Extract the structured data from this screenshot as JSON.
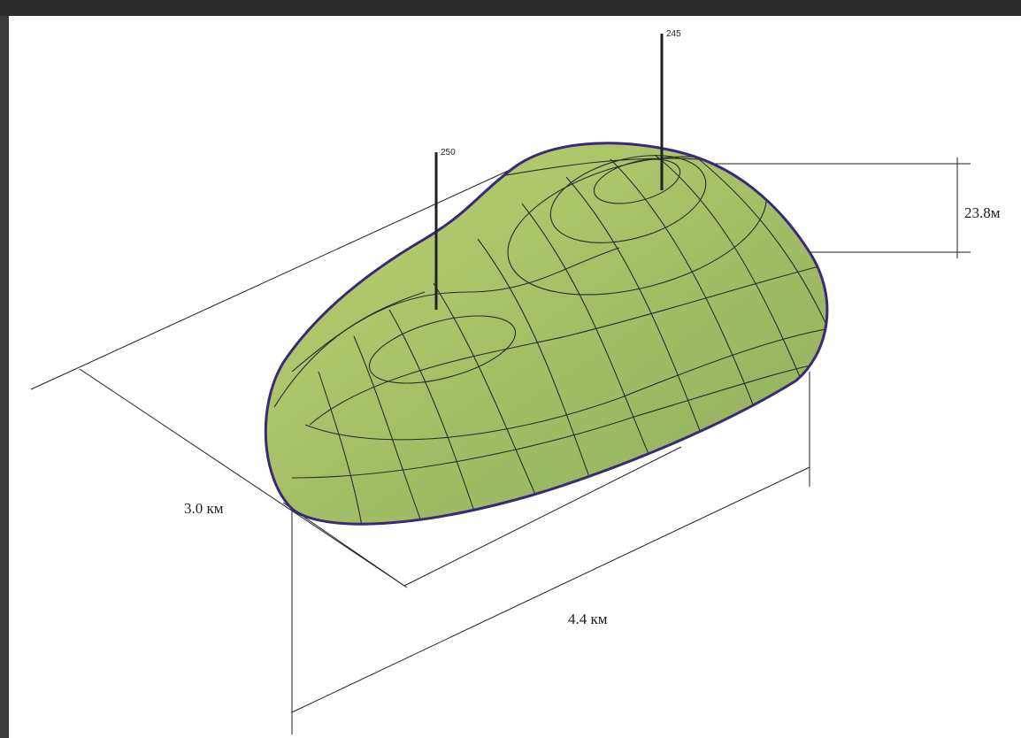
{
  "markers": [
    {
      "label": "250"
    },
    {
      "label": "245"
    }
  ],
  "dimensions": {
    "height": "23.8м",
    "width": "3.0 км",
    "length": "4.4 км"
  }
}
